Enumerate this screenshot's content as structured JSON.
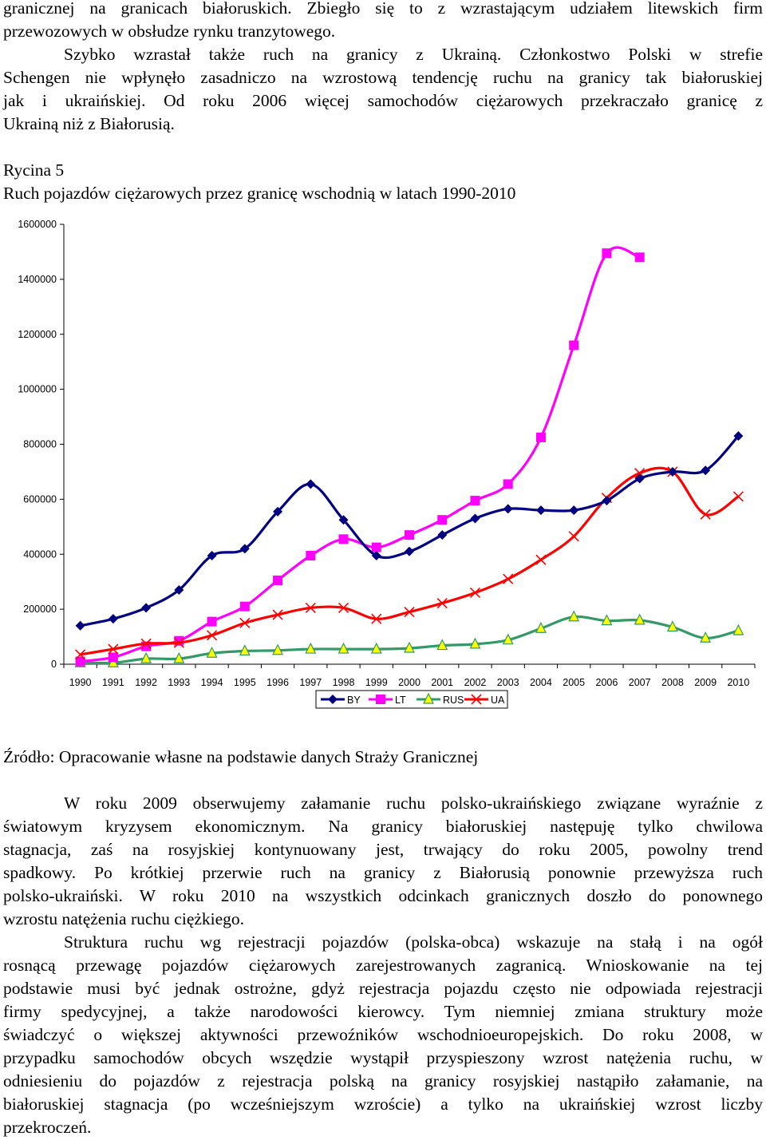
{
  "intro": [
    "granicznej na granicach białoruskich. Zbiegło się to z wzrastającym udziałem litewskich firm",
    "przewozowych w obsłudze rynku tranzytowego.",
    "Szybko wzrastał także ruch na granicy z Ukrainą. Członkostwo Polski w strefie",
    "Schengen nie wpłynęło zasadniczo na wzrostową tendencję ruchu na granicy tak białoruskiej",
    "jak i ukraińskiej. Od roku 2006 więcej samochodów ciężarowych przekraczało granicę z",
    "Ukrainą niż z Białorusią."
  ],
  "figure": {
    "label": "Rycina 5",
    "title": "Ruch pojazdów ciężarowych przez granicę wschodnią w latach 1990-2010"
  },
  "chart_data": {
    "type": "line",
    "x": [
      1990,
      1991,
      1992,
      1993,
      1994,
      1995,
      1996,
      1997,
      1998,
      1999,
      2000,
      2001,
      2002,
      2003,
      2004,
      2005,
      2006,
      2007,
      2008,
      2009,
      2010
    ],
    "y_ticks": [
      "0",
      "200000",
      "400000",
      "600000",
      "800000",
      "1000000",
      "1200000",
      "1400000",
      "1600000"
    ],
    "ylim": [
      0,
      1600000
    ],
    "grid": false,
    "legend_position": "bottom",
    "series": [
      {
        "name": "BY",
        "color": "#000080",
        "marker": "diamond",
        "values": [
          140000,
          165000,
          205000,
          270000,
          395000,
          420000,
          555000,
          655000,
          525000,
          395000,
          410000,
          470000,
          530000,
          565000,
          560000,
          560000,
          595000,
          675000,
          700000,
          705000,
          830000
        ]
      },
      {
        "name": "LT",
        "color": "#ff00ff",
        "marker": "square",
        "values": [
          10000,
          25000,
          65000,
          85000,
          155000,
          210000,
          305000,
          395000,
          455000,
          425000,
          470000,
          525000,
          595000,
          655000,
          825000,
          1160000,
          1495000,
          1480000,
          null,
          null,
          null
        ]
      },
      {
        "name": "RUS",
        "color": "#339966",
        "marker": "triangle",
        "marker_fill": "#ffff00",
        "values": [
          5000,
          5000,
          20000,
          20000,
          40000,
          48000,
          50000,
          55000,
          55000,
          55000,
          58000,
          68000,
          73000,
          88000,
          130000,
          172000,
          158000,
          160000,
          135000,
          95000,
          122000
        ]
      },
      {
        "name": "UA",
        "color": "#ff0000",
        "marker": "x",
        "values": [
          35000,
          55000,
          75000,
          78000,
          105000,
          150000,
          180000,
          205000,
          205000,
          165000,
          190000,
          222000,
          260000,
          310000,
          380000,
          465000,
          605000,
          695000,
          700000,
          545000,
          610000
        ]
      }
    ]
  },
  "source": "Źródło: Opracowanie własne na podstawie danych Straży Granicznej",
  "para1": [
    "W roku 2009 obserwujemy załamanie ruchu polsko-ukraińskiego związane wyraźnie z",
    "światowym kryzysem ekonomicznym. Na granicy białoruskiej następuję tylko chwilowa",
    "stagnacja, zaś na rosyjskiej kontynuowany jest, trwający do roku 2005, powolny trend",
    "spadkowy. Po krótkiej przerwie ruch na granicy z Białorusią ponownie przewyższa ruch",
    "polsko-ukraiński. W roku 2010 na wszystkich odcinkach granicznych doszło do ponownego",
    "wzrostu natężenia ruchu ciężkiego."
  ],
  "para2": [
    "Struktura ruchu wg rejestracji pojazdów (polska-obca) wskazuje na stałą i na ogół",
    "rosnącą przewagę pojazdów ciężarowych zarejestrowanych zagranicą. Wnioskowanie na tej",
    "podstawie musi być jednak ostrożne, gdyż rejestracja pojazdu często nie odpowiada rejestracji",
    "firmy spedycyjnej, a także narodowości kierowcy. Tym niemniej zmiana struktury może",
    "świadczyć o większej aktywności przewoźników wschodnioeuropejskich. Do roku 2008, w",
    "przypadku samochodów obcych wszędzie wystąpił przyspieszony wzrost natężenia ruchu, w",
    "odniesieniu do pojazdów z rejestracja polską na granicy rosyjskiej nastąpiło załamanie, na",
    "białoruskiej stagnacja (po wcześniejszym wzroście) a tylko na ukraińskiej wzrost liczby",
    "przekroczeń."
  ]
}
